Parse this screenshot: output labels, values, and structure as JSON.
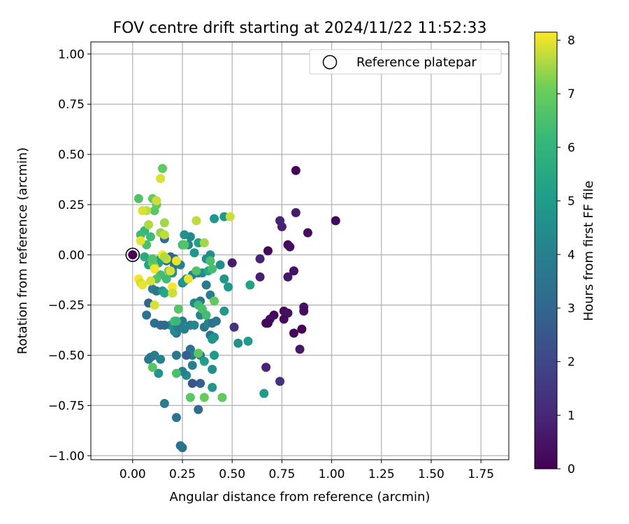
{
  "chart_data": {
    "type": "scatter",
    "title": "FOV centre drift starting at 2024/11/22 11:52:33",
    "xlabel": "Angular distance from reference (arcmin)",
    "ylabel": "Rotation from reference (arcmin)",
    "xlim": [
      -0.21,
      1.89
    ],
    "ylim": [
      -1.02,
      1.06
    ],
    "xticks": [
      "0.00",
      "0.25",
      "0.50",
      "0.75",
      "1.00",
      "1.25",
      "1.50",
      "1.75"
    ],
    "xtick_values": [
      0,
      0.25,
      0.5,
      0.75,
      1.0,
      1.25,
      1.5,
      1.75
    ],
    "yticks": [
      "1.00",
      "0.75",
      "0.50",
      "0.25",
      "0.00",
      "−0.25",
      "−0.50",
      "−0.75",
      "−1.00"
    ],
    "ytick_values": [
      1.0,
      0.75,
      0.5,
      0.25,
      0,
      -0.25,
      -0.5,
      -0.75,
      -1.0
    ],
    "grid": true,
    "legend": {
      "position": "top-right",
      "label": "Reference platepar"
    },
    "reference_point": {
      "x": 0.0,
      "y": 0.0
    },
    "colorbar": {
      "label": "Hours from first FF file",
      "colormap": "viridis",
      "range": [
        0,
        8.15
      ],
      "ticks": [
        "0",
        "1",
        "2",
        "3",
        "4",
        "5",
        "6",
        "7",
        "8"
      ],
      "tick_values": [
        0,
        1,
        2,
        3,
        4,
        5,
        6,
        7,
        8
      ]
    },
    "series": [
      {
        "points": [
          [
            0.0,
            0.0,
            0.05
          ],
          [
            0.82,
            0.42,
            0.1
          ],
          [
            1.02,
            0.17,
            0.2
          ],
          [
            0.88,
            0.11,
            0.3
          ],
          [
            0.78,
            0.05,
            0.2
          ],
          [
            0.79,
            0.04,
            0.3
          ],
          [
            0.68,
            0.02,
            0.2
          ],
          [
            0.75,
            0.14,
            0.8
          ],
          [
            0.74,
            0.17,
            0.9
          ],
          [
            0.82,
            0.21,
            0.7
          ],
          [
            0.64,
            -0.02,
            0.9
          ],
          [
            0.64,
            -0.11,
            0.8
          ],
          [
            0.78,
            -0.11,
            0.6
          ],
          [
            0.81,
            -0.08,
            0.4
          ],
          [
            0.5,
            -0.04,
            0.7
          ],
          [
            0.71,
            -0.3,
            0.2
          ],
          [
            0.69,
            -0.32,
            0.3
          ],
          [
            0.68,
            -0.34,
            0.1
          ],
          [
            0.67,
            -0.34,
            0.2
          ],
          [
            0.76,
            -0.28,
            0.3
          ],
          [
            0.78,
            -0.29,
            0.4
          ],
          [
            0.76,
            -0.32,
            0.2
          ],
          [
            0.86,
            -0.26,
            0.5
          ],
          [
            0.86,
            -0.28,
            0.3
          ],
          [
            0.85,
            -0.37,
            0.1
          ],
          [
            0.81,
            -0.39,
            0.2
          ],
          [
            0.84,
            -0.47,
            0.6
          ],
          [
            0.67,
            -0.56,
            0.9
          ],
          [
            0.74,
            -0.63,
            1.3
          ],
          [
            0.51,
            -0.36,
            1.4
          ],
          [
            0.25,
            -0.96,
            3.4
          ],
          [
            0.24,
            -0.95,
            3.5
          ],
          [
            0.22,
            -0.81,
            3.5
          ],
          [
            0.33,
            -0.77,
            3.2
          ],
          [
            0.34,
            -0.64,
            2.8
          ],
          [
            0.3,
            -0.64,
            2.4
          ],
          [
            0.16,
            -0.74,
            3.9
          ],
          [
            0.27,
            -0.6,
            4.4
          ],
          [
            0.13,
            -0.59,
            4.7
          ],
          [
            0.25,
            -0.58,
            4.0
          ],
          [
            0.22,
            -0.5,
            3.7
          ],
          [
            0.29,
            -0.47,
            3.4
          ],
          [
            0.3,
            -0.5,
            3.8
          ],
          [
            0.27,
            -0.5,
            2.9
          ],
          [
            0.3,
            -0.55,
            4.0
          ],
          [
            0.34,
            -0.5,
            3.7
          ],
          [
            0.36,
            -0.53,
            5.1
          ],
          [
            0.41,
            -0.5,
            4.9
          ],
          [
            0.4,
            -0.57,
            4.5
          ],
          [
            0.4,
            -0.66,
            4.8
          ],
          [
            0.14,
            -0.52,
            4.1
          ],
          [
            0.11,
            -0.5,
            3.9
          ],
          [
            0.08,
            -0.52,
            3.6
          ],
          [
            0.09,
            -0.51,
            3.7
          ],
          [
            0.22,
            -0.39,
            3.6
          ],
          [
            0.21,
            -0.38,
            4.4
          ],
          [
            0.19,
            -0.35,
            4.7
          ],
          [
            0.14,
            -0.35,
            3.3
          ],
          [
            0.16,
            -0.35,
            3.1
          ],
          [
            0.11,
            -0.34,
            3.3
          ],
          [
            0.07,
            -0.3,
            3.5
          ],
          [
            0.08,
            -0.24,
            3.1
          ],
          [
            0.22,
            -0.34,
            3.6
          ],
          [
            0.23,
            -0.36,
            3.8
          ],
          [
            0.25,
            -0.33,
            3.9
          ],
          [
            0.26,
            -0.37,
            4.0
          ],
          [
            0.29,
            -0.35,
            3.9
          ],
          [
            0.31,
            -0.35,
            4.3
          ],
          [
            0.34,
            -0.3,
            4.2
          ],
          [
            0.36,
            -0.36,
            3.6
          ],
          [
            0.38,
            -0.34,
            4.1
          ],
          [
            0.4,
            -0.34,
            3.4
          ],
          [
            0.42,
            -0.33,
            3.6
          ],
          [
            0.39,
            -0.4,
            3.5
          ],
          [
            0.41,
            -0.41,
            4.6
          ],
          [
            0.4,
            -0.42,
            4.8
          ],
          [
            0.33,
            -0.24,
            3.5
          ],
          [
            0.34,
            -0.23,
            3.7
          ],
          [
            0.39,
            -0.2,
            3.9
          ],
          [
            0.37,
            -0.15,
            3.8
          ],
          [
            0.31,
            -0.24,
            4.2
          ],
          [
            0.46,
            -0.28,
            4.9
          ],
          [
            0.33,
            -0.09,
            3.7
          ],
          [
            0.3,
            -0.1,
            4.1
          ],
          [
            0.35,
            -0.09,
            4.4
          ],
          [
            0.38,
            -0.08,
            5.5
          ],
          [
            0.39,
            -0.03,
            4.6
          ],
          [
            0.39,
            0.0,
            4.5
          ],
          [
            0.37,
            -0.02,
            4.7
          ],
          [
            0.31,
            0.01,
            4.8
          ],
          [
            0.28,
            0.05,
            4.2
          ],
          [
            0.29,
            0.09,
            4.3
          ],
          [
            0.26,
            0.1,
            4.6
          ],
          [
            0.33,
            0.06,
            5.2
          ],
          [
            0.41,
            0.18,
            4.8
          ],
          [
            0.46,
            0.19,
            4.9
          ],
          [
            0.44,
            -0.05,
            4.5
          ],
          [
            0.46,
            -0.12,
            4.8
          ],
          [
            0.48,
            -0.16,
            4.9
          ],
          [
            0.53,
            -0.44,
            4.6
          ],
          [
            0.58,
            -0.43,
            5.0
          ],
          [
            0.59,
            -0.15,
            5.3
          ],
          [
            0.66,
            -0.69,
            5.0
          ],
          [
            0.16,
            0.08,
            3.3
          ],
          [
            0.19,
            -0.01,
            2.8
          ],
          [
            0.17,
            -0.03,
            3.4
          ],
          [
            0.21,
            -0.02,
            3.0
          ],
          [
            0.21,
            -0.05,
            3.5
          ],
          [
            0.2,
            -0.08,
            3.6
          ],
          [
            0.24,
            -0.05,
            4.0
          ],
          [
            0.25,
            -0.14,
            4.3
          ],
          [
            0.26,
            -0.13,
            5.0
          ],
          [
            0.27,
            -0.12,
            4.7
          ],
          [
            0.14,
            -0.02,
            4.9
          ],
          [
            0.13,
            -0.04,
            5.2
          ],
          [
            0.1,
            -0.17,
            4.0
          ],
          [
            0.12,
            -0.18,
            3.6
          ],
          [
            0.15,
            -0.18,
            4.8
          ],
          [
            0.16,
            -0.19,
            5.4
          ],
          [
            0.2,
            -0.09,
            4.5
          ],
          [
            0.08,
            -0.05,
            5.3
          ],
          [
            0.06,
            -0.01,
            5.6
          ],
          [
            0.36,
            -0.71,
            7.0
          ],
          [
            0.45,
            -0.71,
            6.9
          ],
          [
            0.29,
            -0.71,
            6.8
          ],
          [
            0.22,
            -0.59,
            6.5
          ],
          [
            0.1,
            -0.56,
            6.7
          ],
          [
            0.21,
            -0.33,
            6.4
          ],
          [
            0.22,
            -0.33,
            6.2
          ],
          [
            0.23,
            -0.27,
            6.7
          ],
          [
            0.33,
            -0.25,
            6.3
          ],
          [
            0.35,
            -0.27,
            6.5
          ],
          [
            0.37,
            -0.3,
            6.4
          ],
          [
            0.33,
            -0.49,
            6.8
          ],
          [
            0.41,
            -0.23,
            6.9
          ],
          [
            0.39,
            -0.03,
            6.5
          ],
          [
            0.4,
            -0.07,
            6.4
          ],
          [
            0.32,
            -0.08,
            6.6
          ],
          [
            0.25,
            0.05,
            6.3
          ],
          [
            0.26,
            0.05,
            6.7
          ],
          [
            0.36,
            0.06,
            7.5
          ],
          [
            0.32,
            0.17,
            7.7
          ],
          [
            0.49,
            0.19,
            7.8
          ],
          [
            0.14,
            -0.1,
            6.4
          ],
          [
            0.12,
            -0.12,
            6.7
          ],
          [
            0.17,
            -0.12,
            6.3
          ],
          [
            0.2,
            -0.19,
            6.9
          ],
          [
            0.18,
            -0.08,
            7.1
          ],
          [
            0.11,
            -0.06,
            7.4
          ],
          [
            0.1,
            -0.04,
            7.0
          ],
          [
            0.1,
            -0.02,
            6.6
          ],
          [
            0.07,
            0.05,
            6.5
          ],
          [
            0.09,
            0.09,
            6.3
          ],
          [
            0.06,
            0.12,
            6.1
          ],
          [
            0.04,
            0.1,
            6.3
          ],
          [
            0.03,
            0.28,
            6.6
          ],
          [
            0.1,
            0.28,
            7.0
          ],
          [
            0.11,
            0.22,
            6.8
          ],
          [
            0.12,
            0.25,
            6.9
          ],
          [
            0.12,
            0.27,
            7.8
          ],
          [
            0.15,
            0.43,
            6.9
          ],
          [
            0.14,
            0.38,
            7.9
          ],
          [
            0.07,
            0.22,
            7.7
          ],
          [
            0.05,
            0.22,
            7.9
          ],
          [
            0.08,
            0.15,
            7.6
          ],
          [
            0.16,
            0.16,
            7.5
          ],
          [
            0.14,
            0.11,
            7.4
          ],
          [
            0.16,
            0.1,
            7.7
          ],
          [
            0.04,
            0.07,
            8.0
          ],
          [
            0.03,
            -0.12,
            8.1
          ],
          [
            0.04,
            -0.14,
            7.8
          ],
          [
            0.05,
            -0.15,
            8.0
          ],
          [
            0.09,
            -0.13,
            7.9
          ],
          [
            0.11,
            -0.07,
            8.1
          ],
          [
            0.11,
            -0.25,
            7.9
          ],
          [
            0.15,
            0.0,
            8.1
          ],
          [
            0.17,
            -0.02,
            7.8
          ],
          [
            0.19,
            -0.08,
            7.9
          ],
          [
            0.2,
            -0.16,
            8.1
          ],
          [
            0.2,
            -0.19,
            7.8
          ],
          [
            0.22,
            -0.03,
            8.0
          ],
          [
            0.28,
            -0.12,
            8.0
          ],
          [
            0.16,
            -0.01,
            7.6
          ]
        ]
      }
    ]
  }
}
